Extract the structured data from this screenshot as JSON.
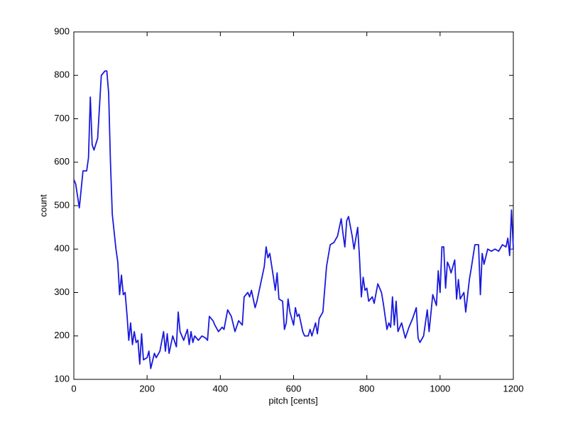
{
  "chart_data": {
    "type": "line",
    "xlabel": "pitch [cents]",
    "ylabel": "count",
    "xlim": [
      0,
      1200
    ],
    "ylim": [
      100,
      900
    ],
    "xticks": [
      0,
      200,
      400,
      600,
      800,
      1000,
      1200
    ],
    "yticks": [
      100,
      200,
      300,
      400,
      500,
      600,
      700,
      800,
      900
    ],
    "grid": false,
    "series": [
      {
        "color": "#1a1adc",
        "x": [
          0,
          5,
          15,
          25,
          35,
          40,
          45,
          50,
          55,
          65,
          75,
          85,
          90,
          95,
          100,
          105,
          115,
          120,
          125,
          130,
          135,
          140,
          145,
          150,
          155,
          160,
          165,
          170,
          175,
          180,
          185,
          190,
          200,
          205,
          210,
          220,
          225,
          235,
          245,
          250,
          255,
          260,
          270,
          280,
          285,
          290,
          300,
          310,
          315,
          320,
          325,
          330,
          340,
          350,
          360,
          365,
          370,
          380,
          385,
          395,
          405,
          410,
          420,
          430,
          440,
          450,
          460,
          465,
          475,
          480,
          485,
          495,
          500,
          510,
          520,
          525,
          530,
          535,
          545,
          550,
          555,
          560,
          570,
          575,
          580,
          585,
          590,
          600,
          605,
          610,
          615,
          625,
          630,
          640,
          645,
          650,
          660,
          665,
          670,
          680,
          690,
          700,
          710,
          720,
          730,
          735,
          740,
          745,
          750,
          760,
          765,
          775,
          780,
          785,
          790,
          795,
          800,
          805,
          815,
          820,
          830,
          840,
          845,
          855,
          860,
          865,
          870,
          875,
          880,
          885,
          895,
          905,
          915,
          925,
          935,
          940,
          945,
          955,
          965,
          970,
          980,
          990,
          995,
          1000,
          1005,
          1010,
          1015,
          1020,
          1025,
          1030,
          1040,
          1045,
          1050,
          1055,
          1065,
          1070,
          1080,
          1085,
          1095,
          1105,
          1110,
          1115,
          1120,
          1130,
          1140,
          1150,
          1160,
          1170,
          1180,
          1185,
          1190,
          1195,
          1200
        ],
        "values": [
          560,
          550,
          495,
          580,
          580,
          610,
          750,
          640,
          628,
          655,
          800,
          810,
          810,
          760,
          600,
          480,
          400,
          370,
          295,
          340,
          295,
          300,
          250,
          190,
          230,
          180,
          210,
          185,
          190,
          135,
          205,
          145,
          150,
          165,
          125,
          160,
          150,
          165,
          210,
          165,
          205,
          160,
          200,
          175,
          255,
          210,
          190,
          215,
          180,
          210,
          185,
          200,
          190,
          200,
          195,
          190,
          245,
          235,
          225,
          210,
          220,
          215,
          260,
          245,
          210,
          235,
          225,
          290,
          300,
          290,
          305,
          265,
          280,
          320,
          360,
          405,
          380,
          390,
          335,
          305,
          345,
          285,
          280,
          215,
          230,
          285,
          255,
          225,
          265,
          245,
          250,
          210,
          200,
          200,
          215,
          200,
          230,
          205,
          240,
          255,
          360,
          410,
          415,
          430,
          470,
          435,
          405,
          465,
          475,
          430,
          400,
          450,
          380,
          290,
          335,
          305,
          310,
          280,
          290,
          275,
          320,
          300,
          275,
          215,
          230,
          220,
          290,
          225,
          280,
          210,
          230,
          195,
          220,
          240,
          265,
          195,
          185,
          200,
          260,
          210,
          295,
          270,
          350,
          300,
          405,
          405,
          310,
          370,
          360,
          345,
          375,
          285,
          330,
          285,
          300,
          255,
          330,
          355,
          410,
          410,
          295,
          390,
          365,
          400,
          395,
          400,
          395,
          410,
          405,
          425,
          385,
          490,
          400
        ]
      }
    ]
  }
}
